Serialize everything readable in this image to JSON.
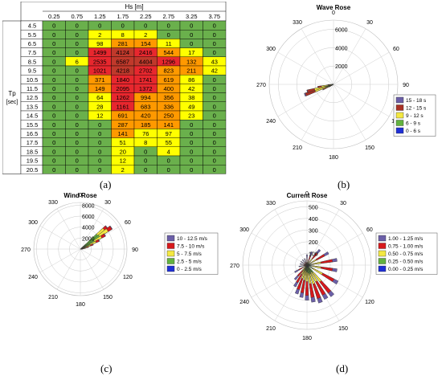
{
  "panels": {
    "a": "(a)",
    "b": "(b)",
    "c": "(c)",
    "d": "(d)"
  },
  "chart_data": [
    {
      "type": "table",
      "id": "scatter-table",
      "column_header": "Hs [m]",
      "row_header": [
        "Tp",
        "[sec]"
      ],
      "columns": [
        "0.25",
        "0.75",
        "1.25",
        "1.75",
        "2.25",
        "2.75",
        "3.25",
        "3.75"
      ],
      "rows": [
        "4.5",
        "5.5",
        "6.5",
        "7.5",
        "8.5",
        "9.5",
        "10.5",
        "11.5",
        "12.5",
        "13.5",
        "14.5",
        "15.5",
        "16.5",
        "17.5",
        "18.5",
        "19.5",
        "20.5"
      ],
      "cells": [
        [
          "0",
          "0",
          "0",
          "0",
          "0",
          "0",
          "0",
          "0"
        ],
        [
          "0",
          "0",
          "2",
          "8",
          "2",
          "0",
          "0",
          "0"
        ],
        [
          "0",
          "0",
          "98",
          "281",
          "154",
          "11",
          "0",
          "0"
        ],
        [
          "0",
          "0",
          "1499",
          "4124",
          "2416",
          "544",
          "17",
          "0"
        ],
        [
          "0",
          "6",
          "2535",
          "6587",
          "4404",
          "1296",
          "132",
          "43"
        ],
        [
          "0",
          "0",
          "1021",
          "4218",
          "2702",
          "823",
          "211",
          "42"
        ],
        [
          "0",
          "0",
          "371",
          "1840",
          "1741",
          "619",
          "86",
          "0"
        ],
        [
          "0",
          "0",
          "149",
          "2095",
          "1372",
          "400",
          "42",
          "0"
        ],
        [
          "0",
          "0",
          "64",
          "1262",
          "994",
          "356",
          "38",
          "0"
        ],
        [
          "0",
          "0",
          "28",
          "1161",
          "683",
          "336",
          "49",
          "0"
        ],
        [
          "0",
          "0",
          "12",
          "691",
          "420",
          "250",
          "23",
          "0"
        ],
        [
          "0",
          "0",
          "0",
          "287",
          "185",
          "141",
          "0",
          "0"
        ],
        [
          "0",
          "0",
          "0",
          "141",
          "76",
          "97",
          "0",
          "0"
        ],
        [
          "0",
          "0",
          "0",
          "51",
          "8",
          "55",
          "0",
          "0"
        ],
        [
          "0",
          "0",
          "0",
          "20",
          "0",
          "4",
          "0",
          "0"
        ],
        [
          "0",
          "0",
          "0",
          "12",
          "0",
          "0",
          "0",
          "0"
        ],
        [
          "0",
          "0",
          "0",
          "2",
          "0",
          "0",
          "0",
          "0"
        ]
      ],
      "colors": {
        "zero": "#6ab04c",
        "low": "#ffff00",
        "mid": "#ff9900",
        "high": "#e8272e",
        "vhigh": "#c0392b"
      }
    },
    {
      "type": "rose",
      "id": "wave-rose",
      "title": "Wave Rose",
      "radial_ticks": [
        2000,
        4000,
        6000
      ],
      "rmax": 7000,
      "directions": [
        "0",
        "30",
        "60",
        "90",
        "120",
        "150",
        "180",
        "210",
        "240",
        "270",
        "300",
        "330"
      ],
      "legend": [
        {
          "label": "15 - 18 s",
          "color": "#6b5fa8"
        },
        {
          "label": "12 - 15 s",
          "color": "#a93226"
        },
        {
          "label": "9 - 12 s",
          "color": "#f4e842"
        },
        {
          "label": "6 - 9 s",
          "color": "#63b33f"
        },
        {
          "label": "0 - 6 s",
          "color": "#1f2fd6"
        }
      ],
      "sectors": [
        {
          "dir": 230,
          "values": [
            30,
            60,
            40,
            10,
            0
          ]
        },
        {
          "dir": 240,
          "values": [
            60,
            200,
            250,
            50,
            0
          ]
        },
        {
          "dir": 245,
          "values": [
            100,
            500,
            550,
            150,
            10
          ]
        },
        {
          "dir": 250,
          "values": [
            120,
            1100,
            1400,
            700,
            20
          ]
        },
        {
          "dir": 255,
          "values": [
            60,
            800,
            1200,
            900,
            20
          ]
        },
        {
          "dir": 260,
          "values": [
            30,
            400,
            800,
            500,
            10
          ]
        },
        {
          "dir": 265,
          "values": [
            20,
            150,
            300,
            150,
            0
          ]
        }
      ]
    },
    {
      "type": "rose",
      "id": "wind-rose",
      "title": "Wind Rose",
      "radial_ticks": [
        2000,
        4000,
        6000,
        8000
      ],
      "rmax": 8500,
      "directions": [
        "0",
        "30",
        "60",
        "90",
        "120",
        "150",
        "180",
        "210",
        "240",
        "270",
        "300",
        "330"
      ],
      "legend": [
        {
          "label": "10 - 12.5 m/s",
          "color": "#6b5fa8"
        },
        {
          "label": "7.5 - 10 m/s",
          "color": "#d7191c"
        },
        {
          "label": "5 - 7.5 m/s",
          "color": "#f4e842"
        },
        {
          "label": "2.5 - 5 m/s",
          "color": "#63b33f"
        },
        {
          "label": "0 - 2.5 m/s",
          "color": "#1f2fd6"
        }
      ],
      "sectors": [
        {
          "dir": 50,
          "values": [
            100,
            600,
            1600,
            3600,
            400
          ]
        },
        {
          "dir": 55,
          "values": [
            100,
            800,
            1800,
            3700,
            500
          ]
        },
        {
          "dir": 60,
          "values": [
            100,
            700,
            1500,
            2600,
            300
          ]
        },
        {
          "dir": 65,
          "values": [
            100,
            600,
            1200,
            1800,
            100
          ]
        },
        {
          "dir": 70,
          "values": [
            100,
            500,
            900,
            1000,
            0
          ]
        },
        {
          "dir": 75,
          "values": [
            80,
            400,
            600,
            500,
            0
          ]
        },
        {
          "dir": 80,
          "values": [
            60,
            300,
            400,
            200,
            0
          ]
        },
        {
          "dir": 85,
          "values": [
            40,
            200,
            200,
            100,
            0
          ]
        },
        {
          "dir": 90,
          "values": [
            40,
            150,
            150,
            80,
            0
          ]
        }
      ]
    },
    {
      "type": "rose",
      "id": "current-rose",
      "title": "Current Rose",
      "radial_ticks": [
        100,
        200,
        300,
        400,
        500
      ],
      "rmax": 550,
      "directions": [
        "0",
        "30",
        "60",
        "90",
        "120",
        "150",
        "180",
        "210",
        "240",
        "270",
        "300",
        "330"
      ],
      "legend": [
        {
          "label": "1.00 - 1.25 m/s",
          "color": "#6b5fa8"
        },
        {
          "label": "0.75 - 1.00 m/s",
          "color": "#d7191c"
        },
        {
          "label": "0.50 - 0.75 m/s",
          "color": "#f4e842"
        },
        {
          "label": "0.25 - 0.50 m/s",
          "color": "#63b33f"
        },
        {
          "label": "0.00 - 0.25 m/s",
          "color": "#1f2fd6"
        }
      ],
      "sectors": [
        {
          "dir": 0,
          "values": [
            40,
            30,
            20,
            0,
            0
          ]
        },
        {
          "dir": 20,
          "values": [
            40,
            40,
            30,
            10,
            0
          ]
        },
        {
          "dir": 40,
          "values": [
            40,
            60,
            50,
            20,
            0
          ]
        },
        {
          "dir": 60,
          "values": [
            40,
            80,
            60,
            30,
            0
          ]
        },
        {
          "dir": 80,
          "values": [
            40,
            100,
            80,
            40,
            0
          ]
        },
        {
          "dir": 100,
          "values": [
            40,
            100,
            80,
            40,
            0
          ]
        },
        {
          "dir": 120,
          "values": [
            40,
            110,
            90,
            50,
            10
          ]
        },
        {
          "dir": 140,
          "values": [
            40,
            120,
            100,
            60,
            20
          ]
        },
        {
          "dir": 150,
          "values": [
            40,
            130,
            90,
            50,
            20
          ]
        },
        {
          "dir": 160,
          "values": [
            40,
            130,
            90,
            60,
            20
          ]
        },
        {
          "dir": 170,
          "values": [
            40,
            120,
            90,
            50,
            20
          ]
        },
        {
          "dir": 180,
          "values": [
            40,
            120,
            80,
            40,
            20
          ]
        },
        {
          "dir": 190,
          "values": [
            40,
            110,
            80,
            40,
            10
          ]
        },
        {
          "dir": 200,
          "values": [
            40,
            100,
            70,
            40,
            10
          ]
        },
        {
          "dir": 210,
          "values": [
            40,
            80,
            50,
            30,
            10
          ]
        },
        {
          "dir": 220,
          "values": [
            40,
            60,
            40,
            20,
            0
          ]
        },
        {
          "dir": 240,
          "values": [
            40,
            40,
            30,
            10,
            0
          ]
        },
        {
          "dir": 260,
          "values": [
            40,
            20,
            10,
            0,
            0
          ]
        },
        {
          "dir": 280,
          "values": [
            30,
            20,
            10,
            0,
            0
          ]
        },
        {
          "dir": 300,
          "values": [
            30,
            20,
            10,
            0,
            0
          ]
        },
        {
          "dir": 320,
          "values": [
            30,
            20,
            10,
            0,
            0
          ]
        },
        {
          "dir": 340,
          "values": [
            30,
            20,
            10,
            0,
            0
          ]
        }
      ]
    }
  ]
}
